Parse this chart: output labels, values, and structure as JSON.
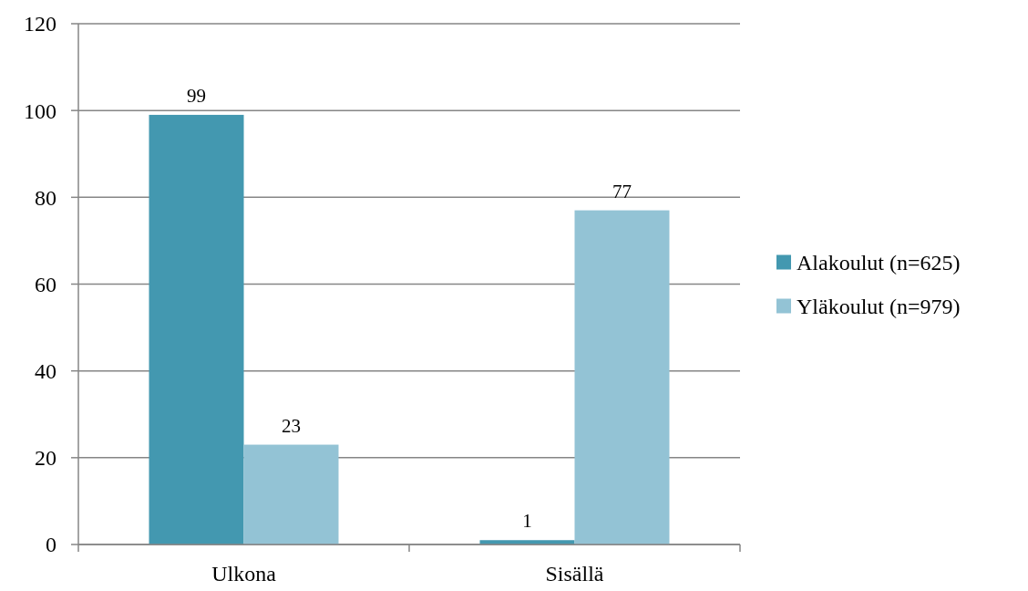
{
  "chart_data": {
    "type": "bar",
    "categories": [
      "Ulkona",
      "Sisällä"
    ],
    "series": [
      {
        "name": "Alakoulut (n=625)",
        "color": "#4398b0",
        "values": [
          99,
          1
        ]
      },
      {
        "name": "Yläkoulut (n=979)",
        "color": "#93c3d5",
        "values": [
          23,
          77
        ]
      }
    ],
    "ylim": [
      0,
      120
    ],
    "yticks": [
      0,
      20,
      40,
      60,
      80,
      100,
      120
    ],
    "grid": "y",
    "legend": "right",
    "data_labels": true
  }
}
